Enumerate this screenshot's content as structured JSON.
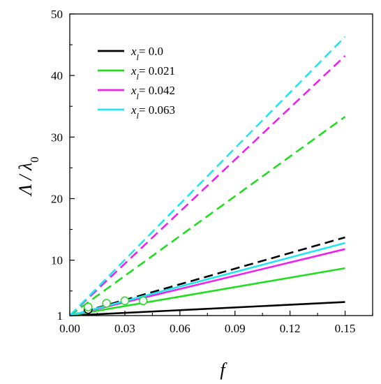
{
  "chart_data": {
    "type": "line",
    "xlabel": "f",
    "ylabel": "Λ / λ0",
    "ylabel_parts": {
      "main": "Λ / λ",
      "sub": "0"
    },
    "xlim": [
      0,
      0.165
    ],
    "ylim": [
      1,
      50
    ],
    "x_ticks": [
      0.0,
      0.03,
      0.06,
      0.09,
      0.12,
      0.15
    ],
    "x_tick_labels": [
      "0.00",
      "0.03",
      "0.06",
      "0.09",
      "0.12",
      "0.15"
    ],
    "y_ticks": [
      1,
      10,
      20,
      30,
      40,
      50
    ],
    "y_tick_labels": [
      "1",
      "10",
      "20",
      "30",
      "40",
      "50"
    ],
    "grid": false,
    "legend_position": "top-left",
    "series": [
      {
        "name": "x_l = 0.0",
        "legend": {
          "prefix": "x",
          "sub": "l",
          "value": "= 0.0"
        },
        "color": "#000000",
        "solid": {
          "x": [
            0.0,
            0.15
          ],
          "y": [
            1.0,
            3.2
          ]
        },
        "dashed": {
          "x": [
            0.0,
            0.15
          ],
          "y": [
            1.0,
            13.7
          ]
        },
        "markers": {
          "x": [
            0.01
          ],
          "y": [
            2.0
          ]
        }
      },
      {
        "name": "x_l = 0.021",
        "legend": {
          "prefix": "x",
          "sub": "l",
          "value": "= 0.021"
        },
        "color": "#22dd22",
        "solid": {
          "x": [
            0.0,
            0.15
          ],
          "y": [
            1.0,
            8.7
          ]
        },
        "dashed": {
          "x": [
            0.0,
            0.15
          ],
          "y": [
            1.0,
            33.3
          ]
        },
        "markers": {
          "x": [
            0.01,
            0.02,
            0.03,
            0.04
          ],
          "y": [
            2.4,
            3.0,
            3.4,
            3.4
          ]
        }
      },
      {
        "name": "x_l = 0.042",
        "legend": {
          "prefix": "x",
          "sub": "l",
          "value": "= 0.042"
        },
        "color": "#ee22ee",
        "solid": {
          "x": [
            0.0,
            0.15
          ],
          "y": [
            1.0,
            11.8
          ]
        },
        "dashed": {
          "x": [
            0.0,
            0.15
          ],
          "y": [
            1.0,
            43.2
          ]
        },
        "markers": {
          "x": [],
          "y": []
        }
      },
      {
        "name": "x_l = 0.063",
        "legend": {
          "prefix": "x",
          "sub": "l",
          "value": "= 0.063"
        },
        "color": "#22e6ee",
        "solid": {
          "x": [
            0.0,
            0.15
          ],
          "y": [
            1.0,
            12.8
          ]
        },
        "dashed": {
          "x": [
            0.0,
            0.15
          ],
          "y": [
            1.0,
            46.3
          ]
        },
        "markers": {
          "x": [],
          "y": []
        }
      }
    ]
  }
}
